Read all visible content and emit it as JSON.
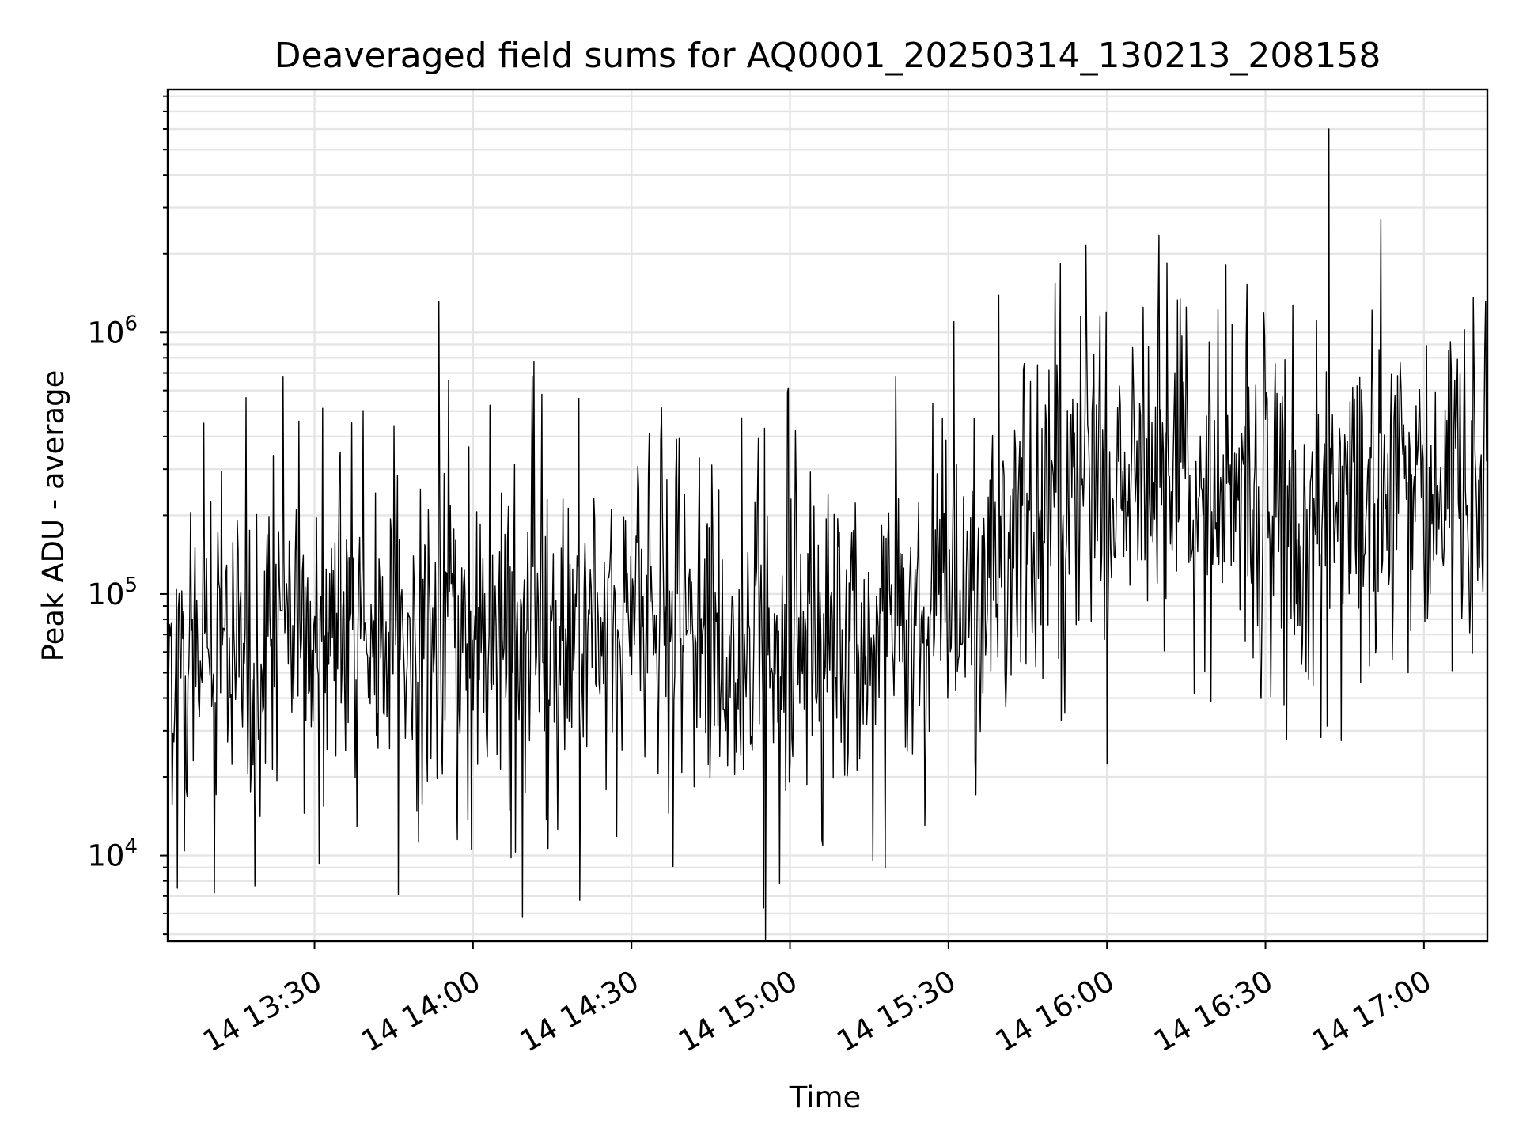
{
  "chart_data": {
    "type": "line",
    "title": "Deaveraged field sums for AQ0001_20250314_130213_208158",
    "xlabel": "Time",
    "ylabel": "Peak ADU - average",
    "yscale": "log",
    "ylim": [
      4700,
      8500000
    ],
    "xlim": [
      "2025-03-14 13:02:13",
      "2025-03-14 17:12:00"
    ],
    "grid": true,
    "legend": "none",
    "line_color": "#000000",
    "x_ticks": [
      {
        "time": "2025-03-14 13:30",
        "label": "14 13:30"
      },
      {
        "time": "2025-03-14 14:00",
        "label": "14 14:00"
      },
      {
        "time": "2025-03-14 14:30",
        "label": "14 14:30"
      },
      {
        "time": "2025-03-14 15:00",
        "label": "14 15:00"
      },
      {
        "time": "2025-03-14 15:30",
        "label": "14 15:30"
      },
      {
        "time": "2025-03-14 16:00",
        "label": "14 16:00"
      },
      {
        "time": "2025-03-14 16:30",
        "label": "14 16:30"
      },
      {
        "time": "2025-03-14 17:00",
        "label": "14 17:00"
      }
    ],
    "y_ticks": [
      {
        "value": 10000,
        "base": "10",
        "exp": "4"
      },
      {
        "value": 100000,
        "base": "10",
        "exp": "5"
      },
      {
        "value": 1000000,
        "base": "10",
        "exp": "6"
      }
    ],
    "series": [
      {
        "x": [
          "2025-03-14 13:02",
          "2025-03-14 13:07",
          "2025-03-14 13:10",
          "2025-03-14 13:14",
          "2025-03-14 13:19",
          "2025-03-14 13:23",
          "2025-03-14 13:27",
          "2025-03-14 13:31",
          "2025-03-14 13:36",
          "2025-03-14 13:40",
          "2025-03-14 13:44",
          "2025-03-14 13:48",
          "2025-03-14 13:53",
          "2025-03-14 13:57",
          "2025-03-14 14:02",
          "2025-03-14 14:06",
          "2025-03-14 14:10",
          "2025-03-14 14:14",
          "2025-03-14 14:19",
          "2025-03-14 14:23",
          "2025-03-14 14:27",
          "2025-03-14 14:31",
          "2025-03-14 14:36",
          "2025-03-14 14:40",
          "2025-03-14 14:44",
          "2025-03-14 14:48",
          "2025-03-14 14:53",
          "2025-03-14 14:56",
          "2025-03-14 15:01",
          "2025-03-14 15:05",
          "2025-03-14 15:09",
          "2025-03-14 15:14",
          "2025-03-14 15:18",
          "2025-03-14 15:22",
          "2025-03-14 15:26",
          "2025-03-14 15:31",
          "2025-03-14 15:35",
          "2025-03-14 15:39",
          "2025-03-14 15:43",
          "2025-03-14 15:48",
          "2025-03-14 15:52",
          "2025-03-14 15:56",
          "2025-03-14 16:01",
          "2025-03-14 16:05",
          "2025-03-14 16:09",
          "2025-03-14 16:13",
          "2025-03-14 16:18",
          "2025-03-14 16:22",
          "2025-03-14 16:26",
          "2025-03-14 16:30",
          "2025-03-14 16:35",
          "2025-03-14 16:39",
          "2025-03-14 16:43",
          "2025-03-14 16:48",
          "2025-03-14 16:52",
          "2025-03-14 16:56",
          "2025-03-14 17:00",
          "2025-03-14 17:05",
          "2025-03-14 17:09"
        ],
        "y": [
          60000,
          55000,
          62000,
          70000,
          68000,
          65000,
          72000,
          75000,
          70000,
          66000,
          64000,
          62000,
          60000,
          63000,
          65000,
          62000,
          60000,
          64000,
          66000,
          68000,
          70000,
          72000,
          75000,
          70000,
          62000,
          58000,
          55000,
          60000,
          62000,
          65000,
          63000,
          70000,
          75000,
          72000,
          78000,
          110000,
          125000,
          140000,
          150000,
          165000,
          180000,
          195000,
          270000,
          300000,
          260000,
          230000,
          220000,
          210000,
          220000,
          205000,
          195000,
          200000,
          210000,
          220000,
          230000,
          240000,
          230000,
          220000,
          215000
        ]
      }
    ],
    "spikes": [
      {
        "x": "2025-03-14 13:04",
        "y": 7500
      },
      {
        "x": "2025-03-14 13:11",
        "y": 7200
      },
      {
        "x": "2025-03-14 13:09",
        "y": 450000
      },
      {
        "x": "2025-03-14 13:24",
        "y": 680000
      },
      {
        "x": "2025-03-14 13:28",
        "y": 14500
      },
      {
        "x": "2025-03-14 13:45",
        "y": 440000
      },
      {
        "x": "2025-03-14 13:57",
        "y": 11500
      },
      {
        "x": "2025-03-14 14:08",
        "y": 10300
      },
      {
        "x": "2025-03-14 14:13",
        "y": 580000
      },
      {
        "x": "2025-03-14 14:20",
        "y": 560000
      },
      {
        "x": "2025-03-14 14:37",
        "y": 14500
      },
      {
        "x": "2025-03-14 14:55",
        "y": 6300
      },
      {
        "x": "2025-03-14 14:55",
        "y": 430000
      },
      {
        "x": "2025-03-14 14:58",
        "y": 7800
      },
      {
        "x": "2025-03-14 15:06",
        "y": 11500
      },
      {
        "x": "2025-03-14 15:20",
        "y": 680000
      },
      {
        "x": "2025-03-14 15:31",
        "y": 1100000
      },
      {
        "x": "2025-03-14 15:52",
        "y": 35000
      },
      {
        "x": "2025-03-14 15:55",
        "y": 1150000
      },
      {
        "x": "2025-03-14 16:15",
        "y": 1250000
      },
      {
        "x": "2025-03-14 16:42",
        "y": 6000000
      },
      {
        "x": "2025-03-14 16:42",
        "y": 88000
      },
      {
        "x": "2025-03-14 16:57",
        "y": 50000
      }
    ]
  }
}
